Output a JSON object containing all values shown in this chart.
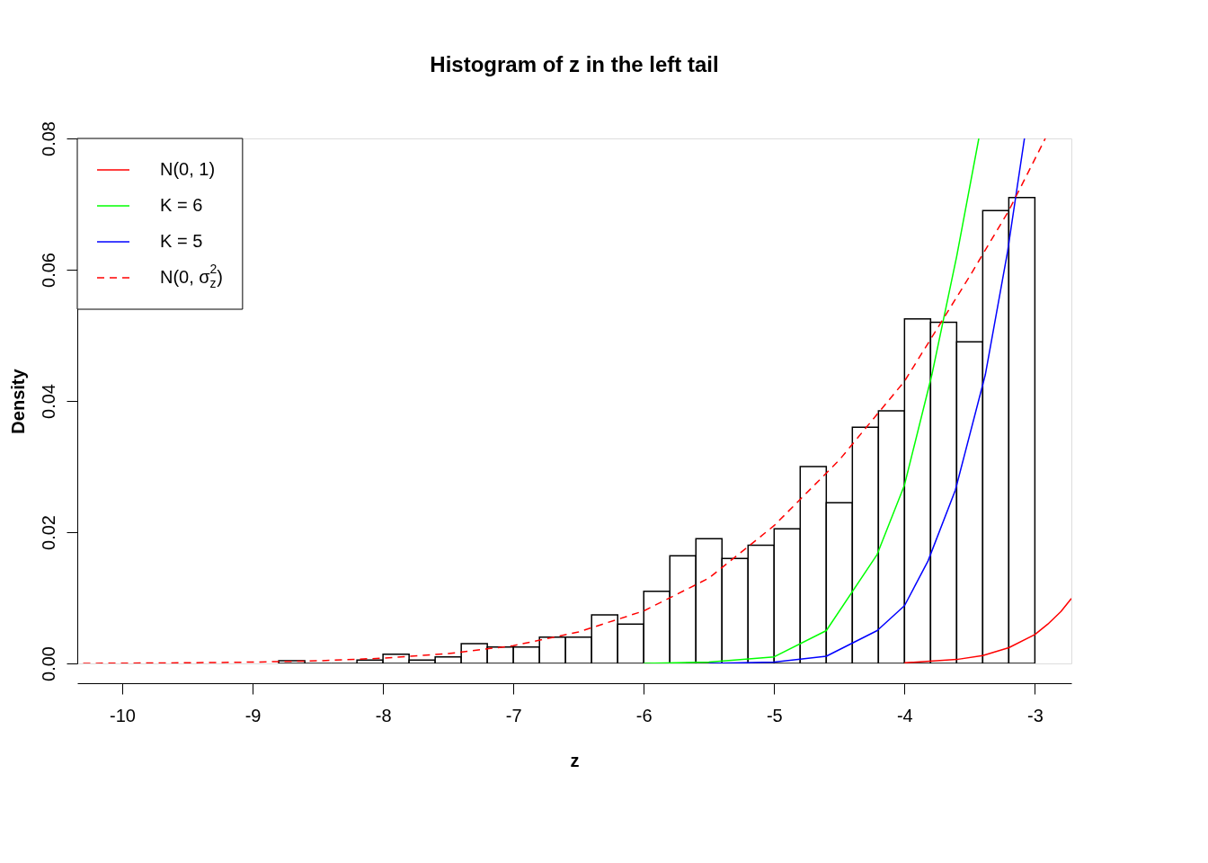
{
  "chart_data": {
    "type": "histogram",
    "title": "Histogram of z in the left tail",
    "xlabel": "z",
    "ylabel": "Density",
    "color": "#000000",
    "bins": [
      -8.8,
      -8.6,
      -8.4,
      -8.2,
      -8.0,
      -7.8,
      -7.6,
      -7.4,
      -7.2,
      -7.0,
      -6.8,
      -6.6,
      -6.4,
      -6.2,
      -6.0,
      -5.8,
      -5.6,
      -5.4,
      -5.2,
      -5.0,
      -4.8,
      -4.6,
      -4.4,
      -4.2,
      -4.0,
      -3.8,
      -3.6,
      -3.4,
      -3.2,
      -3.0,
      -2.8
    ],
    "values": [
      0.0004,
      0,
      0,
      0.0005,
      0.0014,
      0.0005,
      0.001,
      0.003,
      0.0025,
      0.0025,
      0.004,
      0.004,
      0.0074,
      0.006,
      0.011,
      0.0164,
      0.019,
      0.016,
      0.018,
      0.0205,
      0.03,
      0.0245,
      0.036,
      0.0385,
      0.0525,
      0.052,
      0.049,
      0.069,
      0.071,
      null
    ],
    "series": [
      {
        "type": "line",
        "name": "N(0, 1)",
        "color": "#ff0000",
        "line_style": "solid",
        "x": [
          -4.0,
          -3.6,
          -3.4,
          -3.2,
          -3.0,
          -2.9,
          -2.8,
          -2.72
        ],
        "values": [
          0.0001,
          0.0006,
          0.0012,
          0.0024,
          0.0044,
          0.006,
          0.0079,
          0.0099
        ]
      },
      {
        "type": "line",
        "name": "K = 6",
        "color": "#00ff00",
        "line_style": "solid",
        "x": [
          -6.0,
          -5.5,
          -5.0,
          -4.6,
          -4.21,
          -4.0,
          -3.79,
          -3.6,
          -3.43
        ],
        "values": [
          0,
          0.0002,
          0.001,
          0.005,
          0.0166,
          0.0272,
          0.044,
          0.062,
          0.08
        ]
      },
      {
        "type": "line",
        "name": "K = 5",
        "color": "#0000ff",
        "line_style": "solid",
        "x": [
          -5.5,
          -5.0,
          -4.6,
          -4.21,
          -4.0,
          -3.82,
          -3.61,
          -3.38,
          -3.21,
          -3.08
        ],
        "values": [
          0,
          0.0002,
          0.0011,
          0.005,
          0.0088,
          0.0156,
          0.0264,
          0.044,
          0.0627,
          0.08
        ]
      },
      {
        "type": "line",
        "name": "N(0, σ$_{z}$$^{2}$)",
        "color": "#ff0000",
        "line_style": "dashed",
        "x": [
          -10.3,
          -9.5,
          -9.0,
          -8.5,
          -8.0,
          -7.5,
          -7.0,
          -6.5,
          -6.0,
          -5.5,
          -5.0,
          -4.5,
          -4.0,
          -3.5,
          -3.2,
          -2.92
        ],
        "values": [
          0,
          0.0001,
          0.0002,
          0.0004,
          0.0008,
          0.0015,
          0.0027,
          0.0048,
          0.008,
          0.013,
          0.021,
          0.031,
          0.043,
          0.059,
          0.069,
          0.08
        ]
      }
    ],
    "xlim": [
      -10.345,
      -2.72
    ],
    "ylim": [
      0,
      0.08
    ],
    "xticks": [
      -10,
      -9,
      -8,
      -7,
      -6,
      -5,
      -4,
      -3
    ],
    "yticks": [
      {
        "value": 0,
        "label": "0.00"
      },
      {
        "value": 0.02,
        "label": "0.02"
      },
      {
        "value": 0.04,
        "label": "0.04"
      },
      {
        "value": 0.06,
        "label": "0.06"
      },
      {
        "value": 0.08,
        "label": "0.08"
      }
    ],
    "legend": "top left"
  }
}
